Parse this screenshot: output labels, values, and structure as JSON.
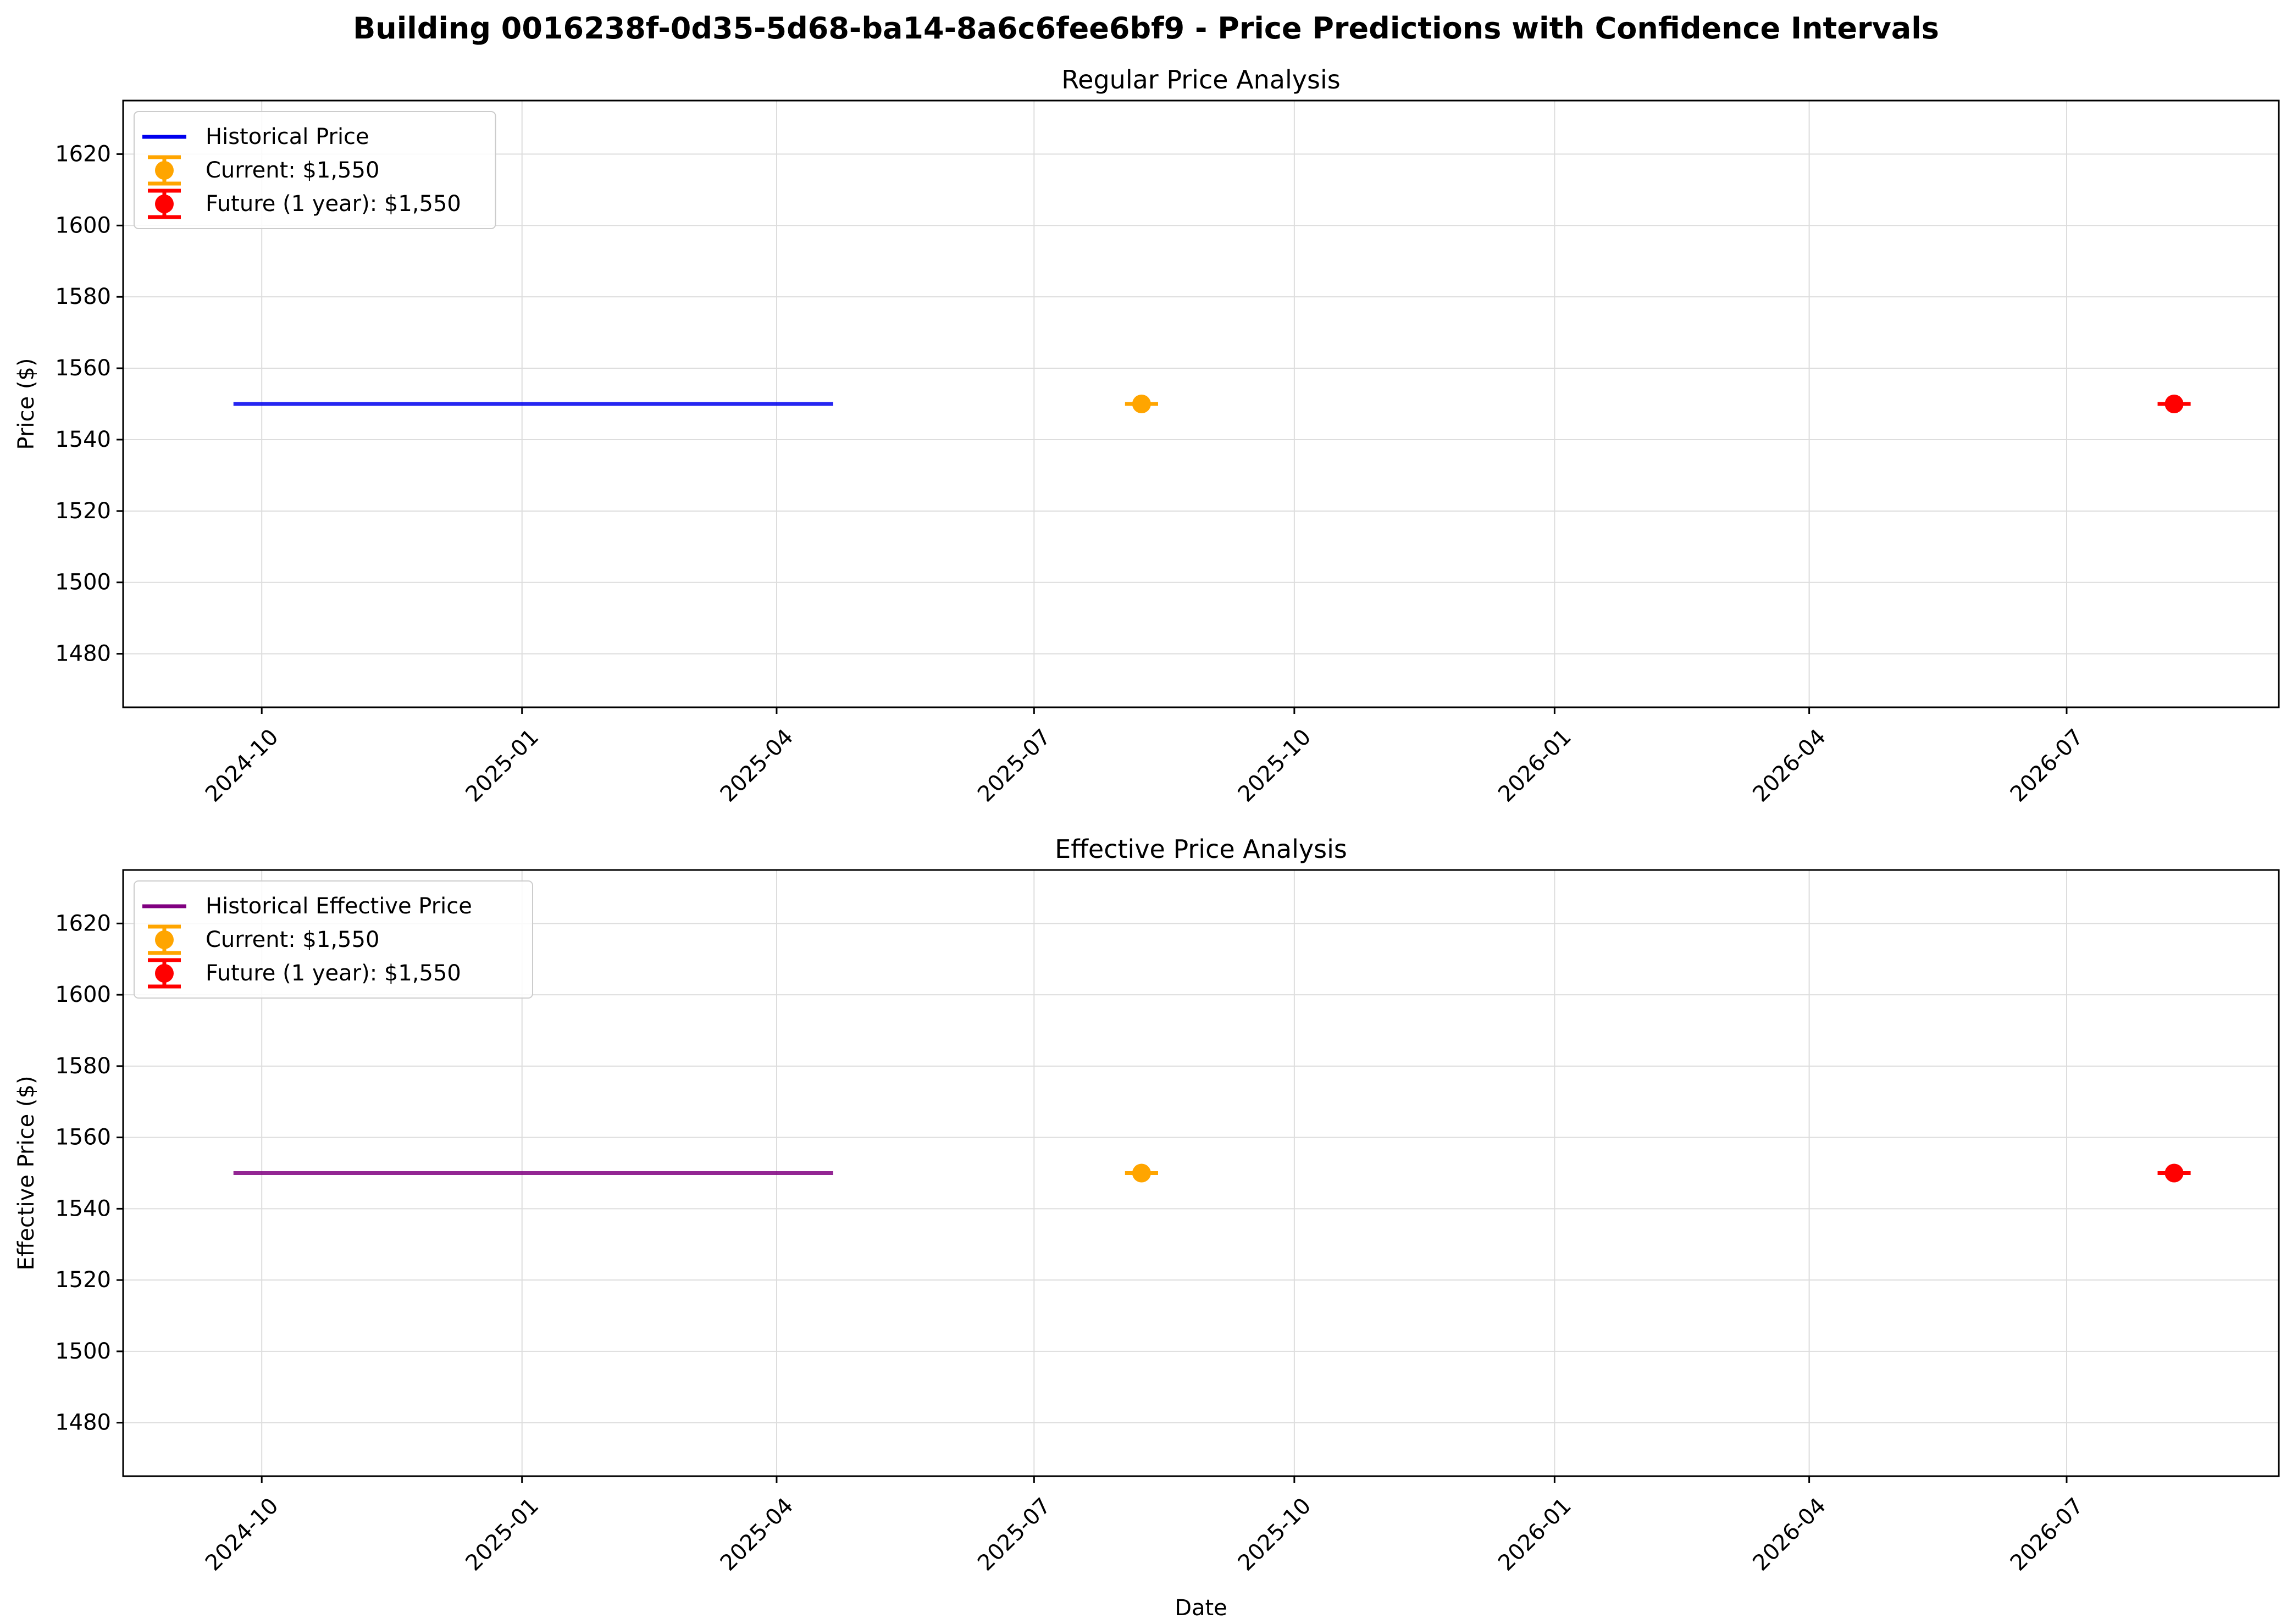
{
  "figure": {
    "title": "Building 0016238f-0d35-5d68-ba14-8a6c6fee6bf9 - Price Predictions with Confidence Intervals"
  },
  "chart_data": [
    {
      "type": "line",
      "title": "Regular Price Analysis",
      "xlabel": "",
      "ylabel": "Price ($)",
      "x_axis": "date",
      "xlim": [
        "2024-08-13",
        "2026-09-14"
      ],
      "ylim": [
        1465,
        1635
      ],
      "xticks": [
        "2024-10",
        "2025-01",
        "2025-04",
        "2025-07",
        "2025-10",
        "2026-01",
        "2026-04",
        "2026-07"
      ],
      "yticks": [
        1480,
        1500,
        1520,
        1540,
        1560,
        1580,
        1600,
        1620
      ],
      "grid": true,
      "legend_position": "upper-left",
      "series": [
        {
          "name": "Historical Price",
          "kind": "line",
          "color": "#0000ee",
          "points": [
            {
              "x": "2024-09-21",
              "y": 1550
            },
            {
              "x": "2025-04-21",
              "y": 1550
            }
          ]
        },
        {
          "name": "Current: $1,550",
          "kind": "errorbar",
          "color": "#ffa500",
          "points": [
            {
              "x": "2025-08-08",
              "y": 1550,
              "yerr_low": 1550,
              "yerr_high": 1550
            }
          ]
        },
        {
          "name": "Future (1 year): $1,550",
          "kind": "errorbar",
          "color": "#ff0000",
          "points": [
            {
              "x": "2026-08-08",
              "y": 1550,
              "yerr_low": 1550,
              "yerr_high": 1550
            }
          ]
        }
      ]
    },
    {
      "type": "line",
      "title": "Effective Price Analysis",
      "xlabel": "Date",
      "ylabel": "Effective Price ($)",
      "x_axis": "date",
      "xlim": [
        "2024-08-13",
        "2026-09-14"
      ],
      "ylim": [
        1465,
        1635
      ],
      "xticks": [
        "2024-10",
        "2025-01",
        "2025-04",
        "2025-07",
        "2025-10",
        "2026-01",
        "2026-04",
        "2026-07"
      ],
      "yticks": [
        1480,
        1500,
        1520,
        1540,
        1560,
        1580,
        1600,
        1620
      ],
      "grid": true,
      "legend_position": "upper-left",
      "series": [
        {
          "name": "Historical Effective Price",
          "kind": "line",
          "color": "#800080",
          "points": [
            {
              "x": "2024-09-21",
              "y": 1550
            },
            {
              "x": "2025-04-21",
              "y": 1550
            }
          ]
        },
        {
          "name": "Current: $1,550",
          "kind": "errorbar",
          "color": "#ffa500",
          "points": [
            {
              "x": "2025-08-08",
              "y": 1550,
              "yerr_low": 1550,
              "yerr_high": 1550
            }
          ]
        },
        {
          "name": "Future (1 year): $1,550",
          "kind": "errorbar",
          "color": "#ff0000",
          "points": [
            {
              "x": "2026-08-08",
              "y": 1550,
              "yerr_low": 1550,
              "yerr_high": 1550
            }
          ]
        }
      ]
    }
  ]
}
